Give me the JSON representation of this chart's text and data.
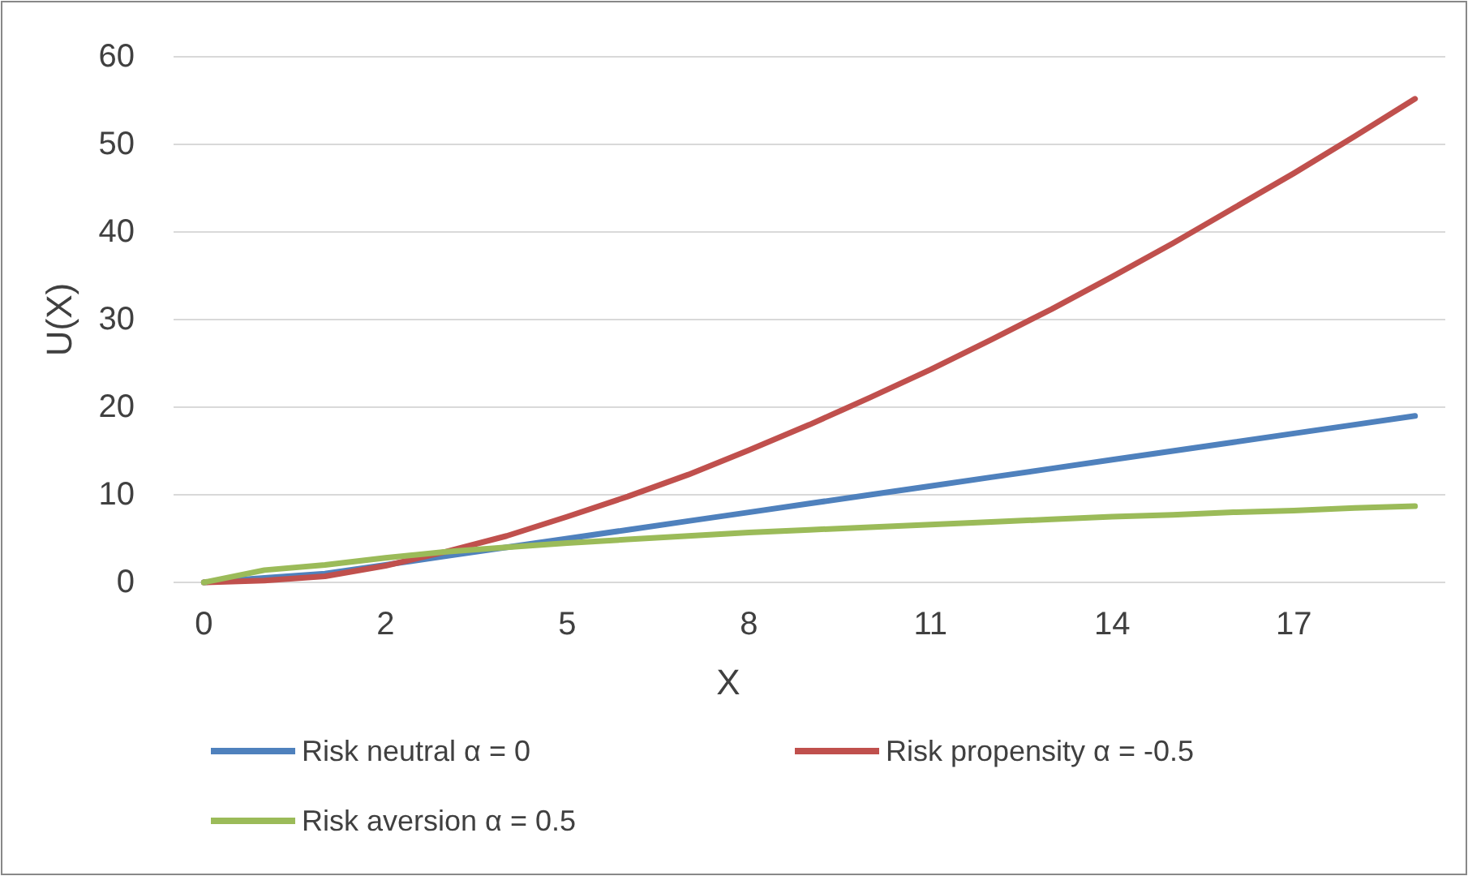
{
  "chart_data": {
    "type": "line",
    "xlabel": "X",
    "ylabel": "U(X)",
    "categories": [
      "0",
      null,
      null,
      "2",
      null,
      null,
      "5",
      null,
      null,
      "8",
      null,
      null,
      "11",
      null,
      null,
      "14",
      null,
      null,
      "17",
      null,
      null
    ],
    "series": [
      {
        "name": "Risk neutral α = 0",
        "color": "#4f81bd",
        "values": [
          0,
          0.5,
          1,
          2,
          3,
          4,
          5,
          6,
          7,
          8,
          9,
          10,
          11,
          12,
          13,
          14,
          15,
          16,
          17,
          18,
          19
        ]
      },
      {
        "name": "Risk propensity α = -0.5",
        "color": "#c0504d",
        "values": [
          0,
          0.2,
          0.7,
          1.9,
          3.5,
          5.3,
          7.5,
          9.8,
          12.3,
          15.1,
          18,
          21.1,
          24.3,
          27.7,
          31.2,
          34.9,
          38.7,
          42.7,
          46.7,
          50.9,
          55.2
        ]
      },
      {
        "name": "Risk aversion α = 0.5",
        "color": "#9bbb59",
        "values": [
          0,
          1.4,
          2,
          2.8,
          3.5,
          4,
          4.5,
          4.9,
          5.3,
          5.7,
          6,
          6.3,
          6.6,
          6.9,
          7.2,
          7.5,
          7.7,
          8,
          8.2,
          8.5,
          8.7
        ]
      }
    ],
    "ylim": [
      0,
      60
    ],
    "yticks": [
      0,
      10,
      20,
      30,
      40,
      50,
      60
    ],
    "grid": "y",
    "legend": "bottom",
    "marker": "none",
    "line_style": "solid"
  }
}
